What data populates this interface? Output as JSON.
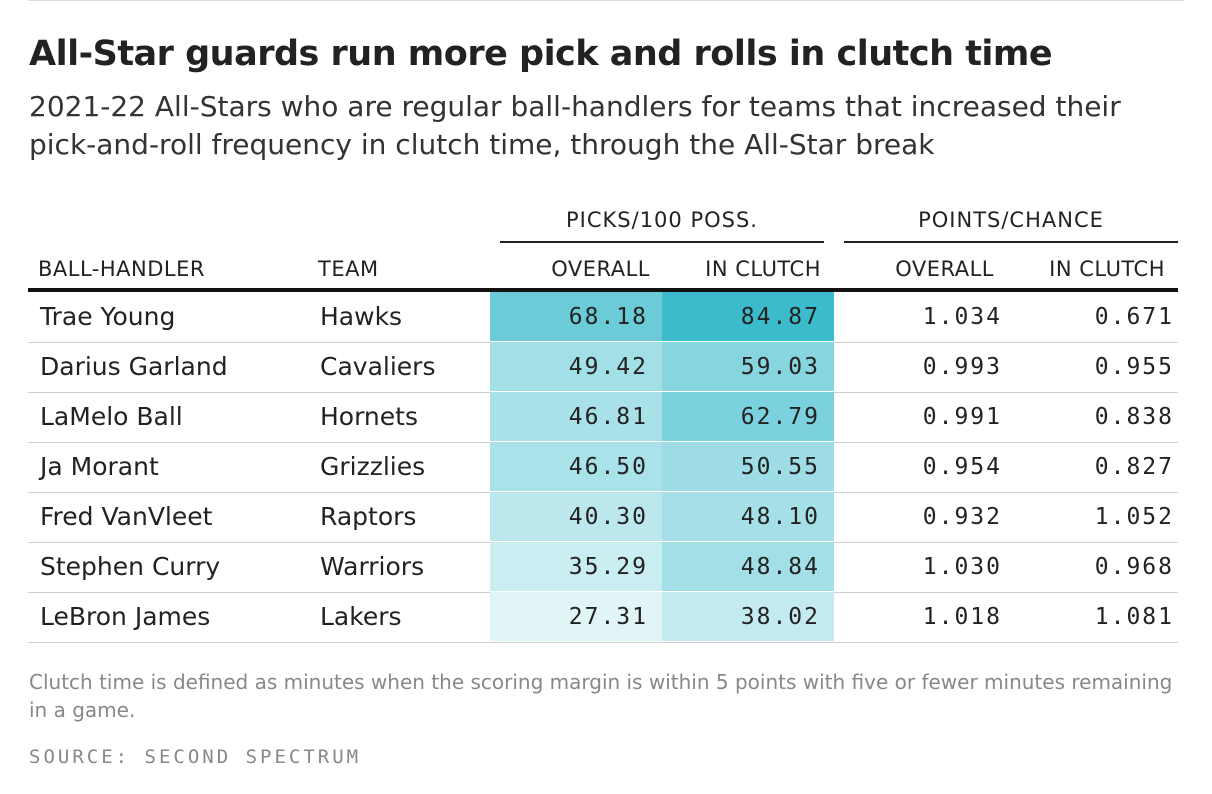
{
  "chart_data": {
    "type": "table",
    "title": "All-Star guards run more pick and rolls in clutch time",
    "subtitle": "2021-22 All-Stars who are regular ball-handlers for teams that increased their pick-and-roll frequency in clutch time, through the All-Star break",
    "column_groups": [
      "PICKS/100 POSS.",
      "POINTS/CHANCE"
    ],
    "columns": [
      "BALL-HANDLER",
      "TEAM",
      "OVERALL",
      "IN CLUTCH",
      "OVERALL",
      "IN CLUTCH"
    ],
    "rows": [
      {
        "player": "Trae Young",
        "team": "Hawks",
        "picks_overall": "68.18",
        "picks_clutch": "84.87",
        "pts_overall": "1.034",
        "pts_clutch": "0.671"
      },
      {
        "player": "Darius Garland",
        "team": "Cavaliers",
        "picks_overall": "49.42",
        "picks_clutch": "59.03",
        "pts_overall": "0.993",
        "pts_clutch": "0.955"
      },
      {
        "player": "LaMelo Ball",
        "team": "Hornets",
        "picks_overall": "46.81",
        "picks_clutch": "62.79",
        "pts_overall": "0.991",
        "pts_clutch": "0.838"
      },
      {
        "player": "Ja Morant",
        "team": "Grizzlies",
        "picks_overall": "46.50",
        "picks_clutch": "50.55",
        "pts_overall": "0.954",
        "pts_clutch": "0.827"
      },
      {
        "player": "Fred VanVleet",
        "team": "Raptors",
        "picks_overall": "40.30",
        "picks_clutch": "48.10",
        "pts_overall": "0.932",
        "pts_clutch": "1.052"
      },
      {
        "player": "Stephen Curry",
        "team": "Warriors",
        "picks_overall": "35.29",
        "picks_clutch": "48.84",
        "pts_overall": "1.030",
        "pts_clutch": "0.968"
      },
      {
        "player": "LeBron James",
        "team": "Lakers",
        "picks_overall": "27.31",
        "picks_clutch": "38.02",
        "pts_overall": "1.018",
        "pts_clutch": "1.081"
      }
    ],
    "heat_colors": {
      "low": "#e8f7f9",
      "high": "#38bacb"
    },
    "note": "Clutch time is defined as minutes when the scoring margin is within 5 points with five or fewer minutes remaining in a game.",
    "source": "SOURCE: SECOND SPECTRUM"
  }
}
